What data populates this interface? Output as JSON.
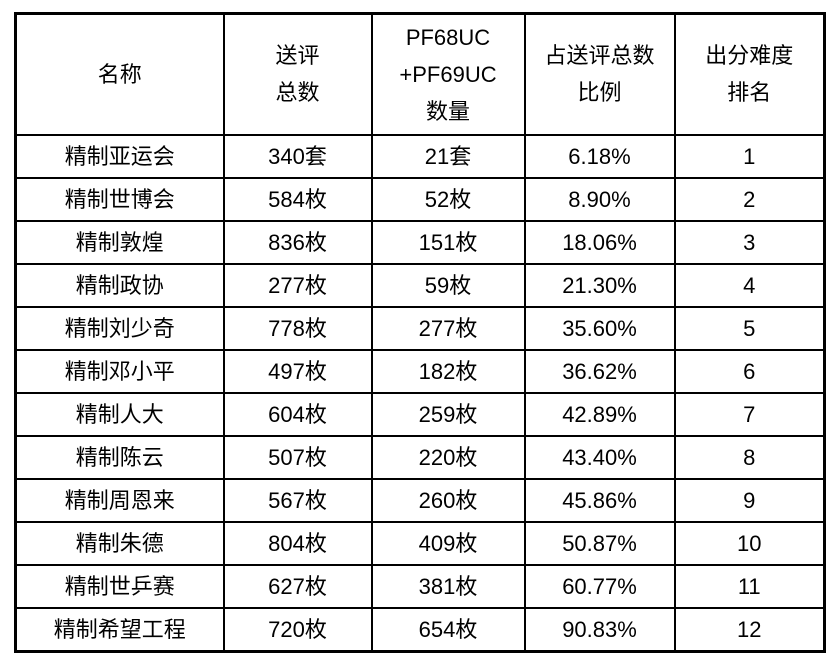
{
  "table": {
    "column_keys": [
      "name",
      "total-submitted",
      "pf68uc-pf69uc-count",
      "ratio-of-total",
      "difficulty-rank"
    ],
    "headers": [
      "名称",
      "送评\n总数",
      "PF68UC\n+PF69UC\n数量",
      "占送评总数\n比例",
      "出分难度\n排名"
    ],
    "rows": [
      [
        "精制亚运会",
        "340套",
        "21套",
        "6.18%",
        "1"
      ],
      [
        "精制世博会",
        "584枚",
        "52枚",
        "8.90%",
        "2"
      ],
      [
        "精制敦煌",
        "836枚",
        "151枚",
        "18.06%",
        "3"
      ],
      [
        "精制政协",
        "277枚",
        "59枚",
        "21.30%",
        "4"
      ],
      [
        "精制刘少奇",
        "778枚",
        "277枚",
        "35.60%",
        "5"
      ],
      [
        "精制邓小平",
        "497枚",
        "182枚",
        "36.62%",
        "6"
      ],
      [
        "精制人大",
        "604枚",
        "259枚",
        "42.89%",
        "7"
      ],
      [
        "精制陈云",
        "507枚",
        "220枚",
        "43.40%",
        "8"
      ],
      [
        "精制周恩来",
        "567枚",
        "260枚",
        "45.86%",
        "9"
      ],
      [
        "精制朱德",
        "804枚",
        "409枚",
        "50.87%",
        "10"
      ],
      [
        "精制世乒赛",
        "627枚",
        "381枚",
        "60.77%",
        "11"
      ],
      [
        "精制希望工程",
        "720枚",
        "654枚",
        "90.83%",
        "12"
      ]
    ],
    "colors": {
      "border": "#000000",
      "text": "#000000",
      "background": "#ffffff"
    }
  }
}
